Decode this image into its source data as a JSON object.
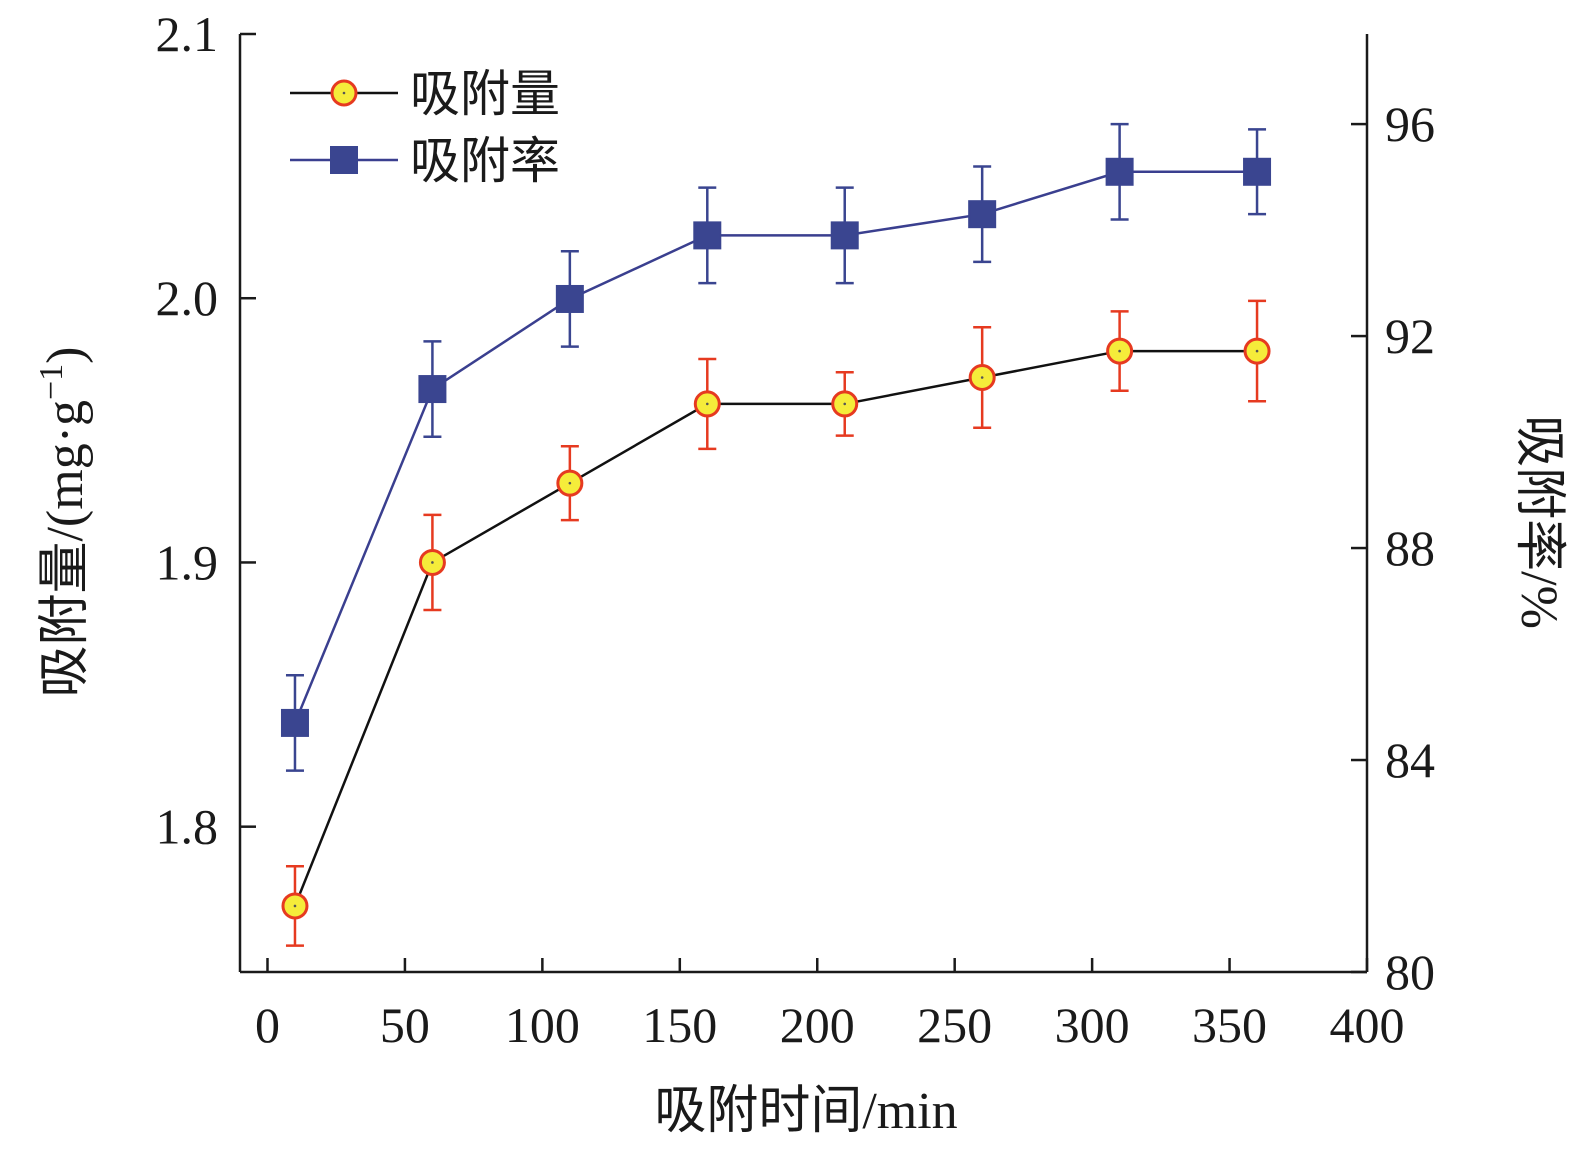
{
  "chart_data": {
    "type": "line",
    "title": "",
    "xlabel": "吸附时间/min",
    "ylabel_left": "吸附量/(mg·g",
    "ylabel_left_superscript": "−1",
    "ylabel_left_close": ")",
    "ylabel_right": "吸附率/%",
    "xlim": [
      -10,
      400
    ],
    "ylim_left": [
      1.745,
      2.1
    ],
    "ylim_right": [
      80,
      97.7
    ],
    "xticks": [
      0,
      50,
      100,
      150,
      200,
      250,
      300,
      350,
      400
    ],
    "yticks_left": [
      "1.8",
      "1.9",
      "2.0",
      "2.1"
    ],
    "yticks_right": [
      80,
      84,
      88,
      92,
      96
    ],
    "grid": false,
    "legend_position": "top-left",
    "x": [
      10,
      60,
      110,
      160,
      210,
      260,
      310,
      360
    ],
    "series": [
      {
        "name": "吸附量",
        "axis": "left",
        "marker": "circle",
        "line_color": "#111111",
        "marker_fill": "#f5ec3a",
        "marker_edge": "#e63a20",
        "errorbar_color": "#e63a20",
        "values": [
          1.77,
          1.9,
          1.93,
          1.96,
          1.96,
          1.97,
          1.98,
          1.98
        ],
        "errors": [
          0.015,
          0.018,
          0.014,
          0.017,
          0.012,
          0.019,
          0.015,
          0.019
        ]
      },
      {
        "name": "吸附率",
        "axis": "right",
        "marker": "square",
        "line_color": "#3a3f8f",
        "marker_fill": "#3a4590",
        "marker_edge": "#3a4590",
        "errorbar_color": "#3a4590",
        "values": [
          84.7,
          91.0,
          92.7,
          93.9,
          93.9,
          94.3,
          95.1,
          95.1
        ],
        "errors": [
          0.9,
          0.9,
          0.9,
          0.9,
          0.9,
          0.9,
          0.9,
          0.8
        ]
      }
    ]
  }
}
